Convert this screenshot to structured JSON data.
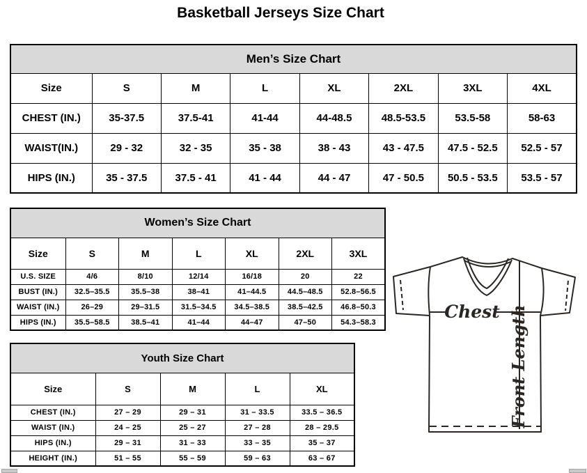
{
  "page_title": "Basketball Jerseys Size Chart",
  "mens": {
    "title": "Men’s Size Chart",
    "columns": [
      "Size",
      "S",
      "M",
      "L",
      "XL",
      "2XL",
      "3XL",
      "4XL"
    ],
    "rows": [
      {
        "label": "CHEST (IN.)",
        "values": [
          "35-37.5",
          "37.5-41",
          "41-44",
          "44-48.5",
          "48.5-53.5",
          "53.5-58",
          "58-63"
        ]
      },
      {
        "label": "WAIST(IN.)",
        "values": [
          "29 - 32",
          "32 - 35",
          "35 - 38",
          "38 - 43",
          "43 - 47.5",
          "47.5 - 52.5",
          "52.5 - 57"
        ]
      },
      {
        "label": "HIPS (IN.)",
        "values": [
          "35 - 37.5",
          "37.5 - 41",
          "41 - 44",
          "44 - 47",
          "47 - 50.5",
          "50.5 - 53.5",
          "53.5 - 57"
        ]
      }
    ]
  },
  "womens": {
    "title": "Women’s Size Chart",
    "columns": [
      "Size",
      "S",
      "M",
      "L",
      "XL",
      "2XL",
      "3XL"
    ],
    "rows": [
      {
        "label": "U.S. SIZE",
        "values": [
          "4/6",
          "8/10",
          "12/14",
          "16/18",
          "20",
          "22"
        ]
      },
      {
        "label": "BUST (IN.)",
        "values": [
          "32.5–35.5",
          "35.5–38",
          "38–41",
          "41–44.5",
          "44.5–48.5",
          "52.8–56.5"
        ]
      },
      {
        "label": "WAIST (IN.)",
        "values": [
          "26–29",
          "29–31.5",
          "31.5–34.5",
          "34.5–38.5",
          "38.5–42.5",
          "46.8–50.3"
        ]
      },
      {
        "label": "HIPS (IN.)",
        "values": [
          "35.5–58.5",
          "38.5–41",
          "41–44",
          "44–47",
          "47–50",
          "54.3–58.3"
        ]
      }
    ]
  },
  "youth": {
    "title": "Youth Size Chart",
    "columns": [
      "Size",
      "S",
      "M",
      "L",
      "XL"
    ],
    "rows": [
      {
        "label": "CHEST (IN.)",
        "values": [
          "27 – 29",
          "29 – 31",
          "31 – 33.5",
          "33.5 – 36.5"
        ]
      },
      {
        "label": "WAIST (IN.)",
        "values": [
          "24 – 25",
          "25 – 27",
          "27 – 28",
          "28 – 29.5"
        ]
      },
      {
        "label": "HIPS (IN.)",
        "values": [
          "29 – 31",
          "31 – 33",
          "33 – 35",
          "35 – 37"
        ]
      },
      {
        "label": "HEIGHT (IN.)",
        "values": [
          "51 – 55",
          "55 – 59",
          "59 – 63",
          "63 – 67"
        ]
      }
    ]
  },
  "diagram": {
    "chest_label": "Chest",
    "front_length_label": "Front Length"
  },
  "colors": {
    "table_band_bg": "#d9d9d9",
    "table_border": "#000000",
    "diagram_stroke": "#2b2622",
    "scrollbar_gray": "#c9c9c9"
  }
}
